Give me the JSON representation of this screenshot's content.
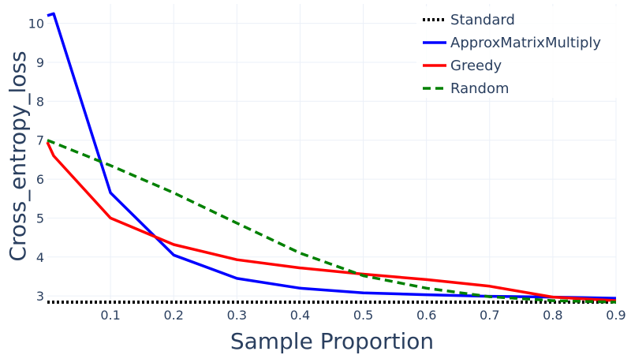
{
  "chart_data": {
    "type": "line",
    "title": "",
    "xlabel": "Sample Proportion",
    "ylabel": "Cross_entropy_loss",
    "xlim": [
      0,
      0.9
    ],
    "ylim": [
      2.8,
      10.5
    ],
    "xticks": [
      0.1,
      0.2,
      0.3,
      0.4,
      0.5,
      0.6,
      0.7,
      0.8,
      0.9
    ],
    "xtick_labels": [
      "0.1",
      "0.2",
      "0.3",
      "0.4",
      "0.5",
      "0.6",
      "0.7",
      "0.8",
      "0.9"
    ],
    "yticks": [
      3,
      4,
      5,
      6,
      7,
      8,
      9,
      10
    ],
    "ytick_labels": [
      "3",
      "4",
      "5",
      "6",
      "7",
      "8",
      "9",
      "10"
    ],
    "grid": true,
    "legend_position": "top-right",
    "series": [
      {
        "name": "Standard",
        "color": "#000000",
        "dash": "dotted",
        "x": [
          0,
          0.9
        ],
        "y": [
          2.84,
          2.84
        ]
      },
      {
        "name": "ApproxMatrixMultiply",
        "color": "#0000ff",
        "dash": "solid",
        "x": [
          0,
          0.01,
          0.1,
          0.2,
          0.3,
          0.4,
          0.5,
          0.6,
          0.7,
          0.8,
          0.9
        ],
        "y": [
          10.2,
          10.25,
          5.65,
          4.05,
          3.45,
          3.2,
          3.08,
          3.03,
          2.99,
          2.97,
          2.94
        ]
      },
      {
        "name": "Greedy",
        "color": "#ff0000",
        "dash": "solid",
        "x": [
          0,
          0.01,
          0.1,
          0.2,
          0.3,
          0.4,
          0.5,
          0.6,
          0.7,
          0.8,
          0.9
        ],
        "y": [
          6.95,
          6.6,
          5.0,
          4.32,
          3.93,
          3.72,
          3.56,
          3.42,
          3.25,
          2.97,
          2.88
        ]
      },
      {
        "name": "Random",
        "color": "#008000",
        "dash": "dashed",
        "x": [
          0,
          0.1,
          0.2,
          0.3,
          0.4,
          0.5,
          0.6,
          0.7,
          0.8,
          0.9
        ],
        "y": [
          7.0,
          6.35,
          5.65,
          4.87,
          4.1,
          3.52,
          3.2,
          2.98,
          2.88,
          2.84
        ]
      }
    ]
  }
}
